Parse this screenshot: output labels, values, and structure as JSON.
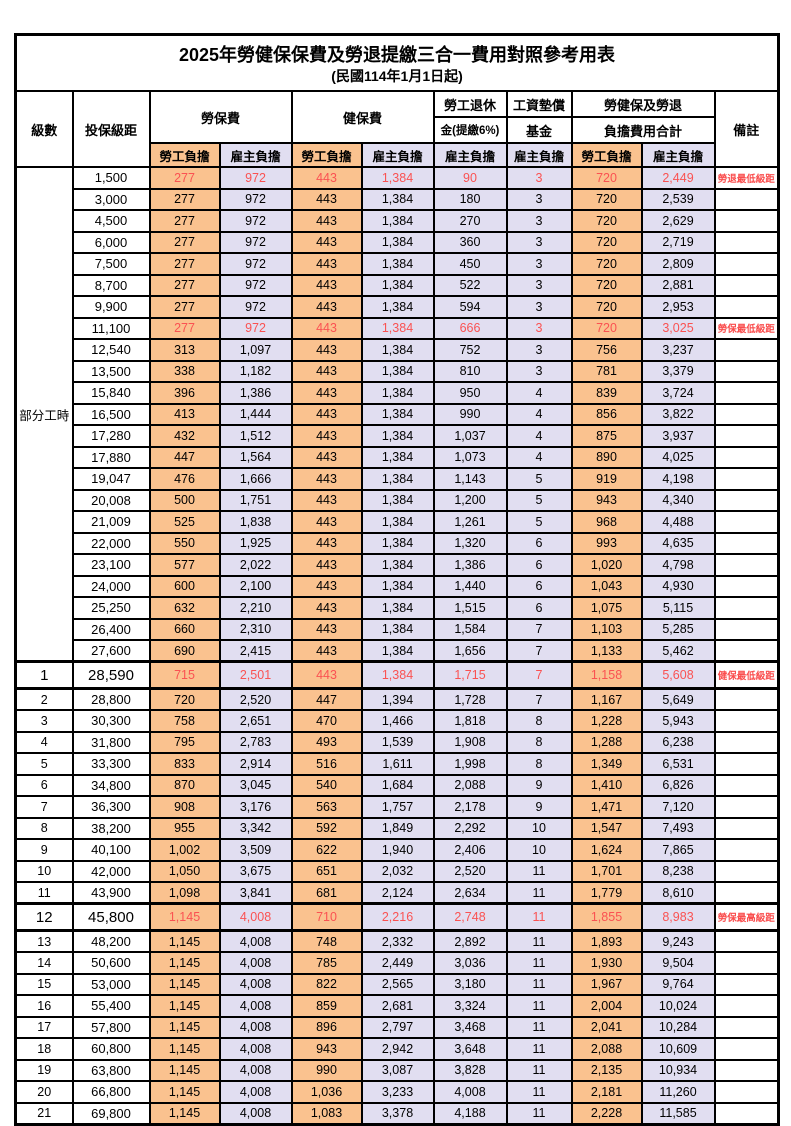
{
  "doc": {
    "title": "2025年勞健保保費及勞退提繳三合一費用對照參考用表",
    "subtitle": "(民國114年1月1日起)"
  },
  "header": {
    "level": "級數",
    "salary": "投保級距",
    "labor": "勞保費",
    "health": "健保費",
    "pension_top": "勞工退休",
    "pension_bottom": "金(提繳6%)",
    "fund_top": "工資墊償",
    "fund_bottom": "基金",
    "total_top": "勞健保及勞退",
    "total_bottom": "負擔費用合計",
    "note": "備註",
    "employee": "勞工負擔",
    "employer": "雇主負擔"
  },
  "row_group": {
    "label": "部分工時",
    "span": 23
  },
  "colors": {
    "employee_bg": "#FAC28F",
    "employer_bg": "#E1DEF1",
    "highlight_text": "#FA5252",
    "note_text": "#FA4D4D",
    "border": "#000000"
  },
  "rows": [
    {
      "level": "",
      "salary": "1,500",
      "labor_emp": "277",
      "labor_er": "972",
      "health_emp": "443",
      "health_er": "1,384",
      "pension_er": "90",
      "fund_er": "3",
      "total_emp": "720",
      "total_er": "2,449",
      "note": "勞退最低級距",
      "red": true,
      "big": false
    },
    {
      "level": "",
      "salary": "3,000",
      "labor_emp": "277",
      "labor_er": "972",
      "health_emp": "443",
      "health_er": "1,384",
      "pension_er": "180",
      "fund_er": "3",
      "total_emp": "720",
      "total_er": "2,539",
      "note": "",
      "red": false,
      "big": false
    },
    {
      "level": "",
      "salary": "4,500",
      "labor_emp": "277",
      "labor_er": "972",
      "health_emp": "443",
      "health_er": "1,384",
      "pension_er": "270",
      "fund_er": "3",
      "total_emp": "720",
      "total_er": "2,629",
      "note": "",
      "red": false,
      "big": false
    },
    {
      "level": "",
      "salary": "6,000",
      "labor_emp": "277",
      "labor_er": "972",
      "health_emp": "443",
      "health_er": "1,384",
      "pension_er": "360",
      "fund_er": "3",
      "total_emp": "720",
      "total_er": "2,719",
      "note": "",
      "red": false,
      "big": false
    },
    {
      "level": "",
      "salary": "7,500",
      "labor_emp": "277",
      "labor_er": "972",
      "health_emp": "443",
      "health_er": "1,384",
      "pension_er": "450",
      "fund_er": "3",
      "total_emp": "720",
      "total_er": "2,809",
      "note": "",
      "red": false,
      "big": false
    },
    {
      "level": "",
      "salary": "8,700",
      "labor_emp": "277",
      "labor_er": "972",
      "health_emp": "443",
      "health_er": "1,384",
      "pension_er": "522",
      "fund_er": "3",
      "total_emp": "720",
      "total_er": "2,881",
      "note": "",
      "red": false,
      "big": false
    },
    {
      "level": "",
      "salary": "9,900",
      "labor_emp": "277",
      "labor_er": "972",
      "health_emp": "443",
      "health_er": "1,384",
      "pension_er": "594",
      "fund_er": "3",
      "total_emp": "720",
      "total_er": "2,953",
      "note": "",
      "red": false,
      "big": false
    },
    {
      "level": "",
      "salary": "11,100",
      "labor_emp": "277",
      "labor_er": "972",
      "health_emp": "443",
      "health_er": "1,384",
      "pension_er": "666",
      "fund_er": "3",
      "total_emp": "720",
      "total_er": "3,025",
      "note": "勞保最低級距",
      "red": true,
      "big": false
    },
    {
      "level": "",
      "salary": "12,540",
      "labor_emp": "313",
      "labor_er": "1,097",
      "health_emp": "443",
      "health_er": "1,384",
      "pension_er": "752",
      "fund_er": "3",
      "total_emp": "756",
      "total_er": "3,237",
      "note": "",
      "red": false,
      "big": false
    },
    {
      "level": "",
      "salary": "13,500",
      "labor_emp": "338",
      "labor_er": "1,182",
      "health_emp": "443",
      "health_er": "1,384",
      "pension_er": "810",
      "fund_er": "3",
      "total_emp": "781",
      "total_er": "3,379",
      "note": "",
      "red": false,
      "big": false
    },
    {
      "level": "",
      "salary": "15,840",
      "labor_emp": "396",
      "labor_er": "1,386",
      "health_emp": "443",
      "health_er": "1,384",
      "pension_er": "950",
      "fund_er": "4",
      "total_emp": "839",
      "total_er": "3,724",
      "note": "",
      "red": false,
      "big": false
    },
    {
      "level": "",
      "salary": "16,500",
      "labor_emp": "413",
      "labor_er": "1,444",
      "health_emp": "443",
      "health_er": "1,384",
      "pension_er": "990",
      "fund_er": "4",
      "total_emp": "856",
      "total_er": "3,822",
      "note": "",
      "red": false,
      "big": false
    },
    {
      "level": "",
      "salary": "17,280",
      "labor_emp": "432",
      "labor_er": "1,512",
      "health_emp": "443",
      "health_er": "1,384",
      "pension_er": "1,037",
      "fund_er": "4",
      "total_emp": "875",
      "total_er": "3,937",
      "note": "",
      "red": false,
      "big": false
    },
    {
      "level": "",
      "salary": "17,880",
      "labor_emp": "447",
      "labor_er": "1,564",
      "health_emp": "443",
      "health_er": "1,384",
      "pension_er": "1,073",
      "fund_er": "4",
      "total_emp": "890",
      "total_er": "4,025",
      "note": "",
      "red": false,
      "big": false
    },
    {
      "level": "",
      "salary": "19,047",
      "labor_emp": "476",
      "labor_er": "1,666",
      "health_emp": "443",
      "health_er": "1,384",
      "pension_er": "1,143",
      "fund_er": "5",
      "total_emp": "919",
      "total_er": "4,198",
      "note": "",
      "red": false,
      "big": false
    },
    {
      "level": "",
      "salary": "20,008",
      "labor_emp": "500",
      "labor_er": "1,751",
      "health_emp": "443",
      "health_er": "1,384",
      "pension_er": "1,200",
      "fund_er": "5",
      "total_emp": "943",
      "total_er": "4,340",
      "note": "",
      "red": false,
      "big": false
    },
    {
      "level": "",
      "salary": "21,009",
      "labor_emp": "525",
      "labor_er": "1,838",
      "health_emp": "443",
      "health_er": "1,384",
      "pension_er": "1,261",
      "fund_er": "5",
      "total_emp": "968",
      "total_er": "4,488",
      "note": "",
      "red": false,
      "big": false
    },
    {
      "level": "",
      "salary": "22,000",
      "labor_emp": "550",
      "labor_er": "1,925",
      "health_emp": "443",
      "health_er": "1,384",
      "pension_er": "1,320",
      "fund_er": "6",
      "total_emp": "993",
      "total_er": "4,635",
      "note": "",
      "red": false,
      "big": false
    },
    {
      "level": "",
      "salary": "23,100",
      "labor_emp": "577",
      "labor_er": "2,022",
      "health_emp": "443",
      "health_er": "1,384",
      "pension_er": "1,386",
      "fund_er": "6",
      "total_emp": "1,020",
      "total_er": "4,798",
      "note": "",
      "red": false,
      "big": false
    },
    {
      "level": "",
      "salary": "24,000",
      "labor_emp": "600",
      "labor_er": "2,100",
      "health_emp": "443",
      "health_er": "1,384",
      "pension_er": "1,440",
      "fund_er": "6",
      "total_emp": "1,043",
      "total_er": "4,930",
      "note": "",
      "red": false,
      "big": false
    },
    {
      "level": "",
      "salary": "25,250",
      "labor_emp": "632",
      "labor_er": "2,210",
      "health_emp": "443",
      "health_er": "1,384",
      "pension_er": "1,515",
      "fund_er": "6",
      "total_emp": "1,075",
      "total_er": "5,115",
      "note": "",
      "red": false,
      "big": false
    },
    {
      "level": "",
      "salary": "26,400",
      "labor_emp": "660",
      "labor_er": "2,310",
      "health_emp": "443",
      "health_er": "1,384",
      "pension_er": "1,584",
      "fund_er": "7",
      "total_emp": "1,103",
      "total_er": "5,285",
      "note": "",
      "red": false,
      "big": false
    },
    {
      "level": "",
      "salary": "27,600",
      "labor_emp": "690",
      "labor_er": "2,415",
      "health_emp": "443",
      "health_er": "1,384",
      "pension_er": "1,656",
      "fund_er": "7",
      "total_emp": "1,133",
      "total_er": "5,462",
      "note": "",
      "red": false,
      "big": false
    },
    {
      "level": "1",
      "salary": "28,590",
      "labor_emp": "715",
      "labor_er": "2,501",
      "health_emp": "443",
      "health_er": "1,384",
      "pension_er": "1,715",
      "fund_er": "7",
      "total_emp": "1,158",
      "total_er": "5,608",
      "note": "健保最低級距",
      "red": true,
      "big": true
    },
    {
      "level": "2",
      "salary": "28,800",
      "labor_emp": "720",
      "labor_er": "2,520",
      "health_emp": "447",
      "health_er": "1,394",
      "pension_er": "1,728",
      "fund_er": "7",
      "total_emp": "1,167",
      "total_er": "5,649",
      "note": "",
      "red": false,
      "big": false
    },
    {
      "level": "3",
      "salary": "30,300",
      "labor_emp": "758",
      "labor_er": "2,651",
      "health_emp": "470",
      "health_er": "1,466",
      "pension_er": "1,818",
      "fund_er": "8",
      "total_emp": "1,228",
      "total_er": "5,943",
      "note": "",
      "red": false,
      "big": false
    },
    {
      "level": "4",
      "salary": "31,800",
      "labor_emp": "795",
      "labor_er": "2,783",
      "health_emp": "493",
      "health_er": "1,539",
      "pension_er": "1,908",
      "fund_er": "8",
      "total_emp": "1,288",
      "total_er": "6,238",
      "note": "",
      "red": false,
      "big": false
    },
    {
      "level": "5",
      "salary": "33,300",
      "labor_emp": "833",
      "labor_er": "2,914",
      "health_emp": "516",
      "health_er": "1,611",
      "pension_er": "1,998",
      "fund_er": "8",
      "total_emp": "1,349",
      "total_er": "6,531",
      "note": "",
      "red": false,
      "big": false
    },
    {
      "level": "6",
      "salary": "34,800",
      "labor_emp": "870",
      "labor_er": "3,045",
      "health_emp": "540",
      "health_er": "1,684",
      "pension_er": "2,088",
      "fund_er": "9",
      "total_emp": "1,410",
      "total_er": "6,826",
      "note": "",
      "red": false,
      "big": false
    },
    {
      "level": "7",
      "salary": "36,300",
      "labor_emp": "908",
      "labor_er": "3,176",
      "health_emp": "563",
      "health_er": "1,757",
      "pension_er": "2,178",
      "fund_er": "9",
      "total_emp": "1,471",
      "total_er": "7,120",
      "note": "",
      "red": false,
      "big": false
    },
    {
      "level": "8",
      "salary": "38,200",
      "labor_emp": "955",
      "labor_er": "3,342",
      "health_emp": "592",
      "health_er": "1,849",
      "pension_er": "2,292",
      "fund_er": "10",
      "total_emp": "1,547",
      "total_er": "7,493",
      "note": "",
      "red": false,
      "big": false
    },
    {
      "level": "9",
      "salary": "40,100",
      "labor_emp": "1,002",
      "labor_er": "3,509",
      "health_emp": "622",
      "health_er": "1,940",
      "pension_er": "2,406",
      "fund_er": "10",
      "total_emp": "1,624",
      "total_er": "7,865",
      "note": "",
      "red": false,
      "big": false
    },
    {
      "level": "10",
      "salary": "42,000",
      "labor_emp": "1,050",
      "labor_er": "3,675",
      "health_emp": "651",
      "health_er": "2,032",
      "pension_er": "2,520",
      "fund_er": "11",
      "total_emp": "1,701",
      "total_er": "8,238",
      "note": "",
      "red": false,
      "big": false
    },
    {
      "level": "11",
      "salary": "43,900",
      "labor_emp": "1,098",
      "labor_er": "3,841",
      "health_emp": "681",
      "health_er": "2,124",
      "pension_er": "2,634",
      "fund_er": "11",
      "total_emp": "1,779",
      "total_er": "8,610",
      "note": "",
      "red": false,
      "big": false
    },
    {
      "level": "12",
      "salary": "45,800",
      "labor_emp": "1,145",
      "labor_er": "4,008",
      "health_emp": "710",
      "health_er": "2,216",
      "pension_er": "2,748",
      "fund_er": "11",
      "total_emp": "1,855",
      "total_er": "8,983",
      "note": "勞保最高級距",
      "red": true,
      "big": true
    },
    {
      "level": "13",
      "salary": "48,200",
      "labor_emp": "1,145",
      "labor_er": "4,008",
      "health_emp": "748",
      "health_er": "2,332",
      "pension_er": "2,892",
      "fund_er": "11",
      "total_emp": "1,893",
      "total_er": "9,243",
      "note": "",
      "red": false,
      "big": false
    },
    {
      "level": "14",
      "salary": "50,600",
      "labor_emp": "1,145",
      "labor_er": "4,008",
      "health_emp": "785",
      "health_er": "2,449",
      "pension_er": "3,036",
      "fund_er": "11",
      "total_emp": "1,930",
      "total_er": "9,504",
      "note": "",
      "red": false,
      "big": false
    },
    {
      "level": "15",
      "salary": "53,000",
      "labor_emp": "1,145",
      "labor_er": "4,008",
      "health_emp": "822",
      "health_er": "2,565",
      "pension_er": "3,180",
      "fund_er": "11",
      "total_emp": "1,967",
      "total_er": "9,764",
      "note": "",
      "red": false,
      "big": false
    },
    {
      "level": "16",
      "salary": "55,400",
      "labor_emp": "1,145",
      "labor_er": "4,008",
      "health_emp": "859",
      "health_er": "2,681",
      "pension_er": "3,324",
      "fund_er": "11",
      "total_emp": "2,004",
      "total_er": "10,024",
      "note": "",
      "red": false,
      "big": false
    },
    {
      "level": "17",
      "salary": "57,800",
      "labor_emp": "1,145",
      "labor_er": "4,008",
      "health_emp": "896",
      "health_er": "2,797",
      "pension_er": "3,468",
      "fund_er": "11",
      "total_emp": "2,041",
      "total_er": "10,284",
      "note": "",
      "red": false,
      "big": false
    },
    {
      "level": "18",
      "salary": "60,800",
      "labor_emp": "1,145",
      "labor_er": "4,008",
      "health_emp": "943",
      "health_er": "2,942",
      "pension_er": "3,648",
      "fund_er": "11",
      "total_emp": "2,088",
      "total_er": "10,609",
      "note": "",
      "red": false,
      "big": false
    },
    {
      "level": "19",
      "salary": "63,800",
      "labor_emp": "1,145",
      "labor_er": "4,008",
      "health_emp": "990",
      "health_er": "3,087",
      "pension_er": "3,828",
      "fund_er": "11",
      "total_emp": "2,135",
      "total_er": "10,934",
      "note": "",
      "red": false,
      "big": false
    },
    {
      "level": "20",
      "salary": "66,800",
      "labor_emp": "1,145",
      "labor_er": "4,008",
      "health_emp": "1,036",
      "health_er": "3,233",
      "pension_er": "4,008",
      "fund_er": "11",
      "total_emp": "2,181",
      "total_er": "11,260",
      "note": "",
      "red": false,
      "big": false
    },
    {
      "level": "21",
      "salary": "69,800",
      "labor_emp": "1,145",
      "labor_er": "4,008",
      "health_emp": "1,083",
      "health_er": "3,378",
      "pension_er": "4,188",
      "fund_er": "11",
      "total_emp": "2,228",
      "total_er": "11,585",
      "note": "",
      "red": false,
      "big": false
    }
  ]
}
